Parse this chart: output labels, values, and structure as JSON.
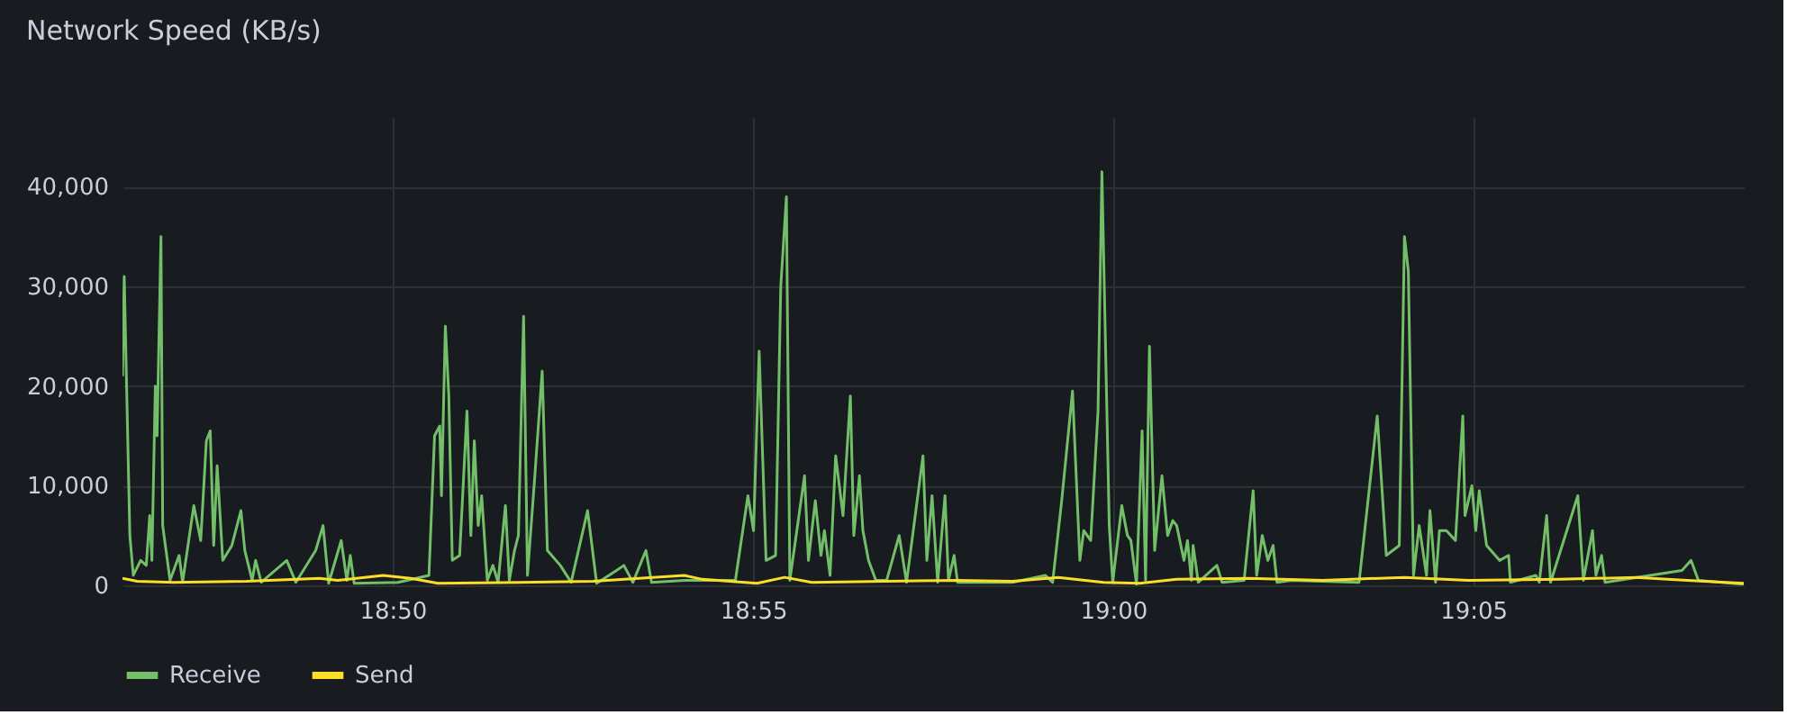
{
  "chart_data": {
    "type": "line",
    "title": "Network Speed (KB/s)",
    "xlim": [
      18.7708,
      19.1459
    ],
    "xticks": [
      {
        "value": 18.8333,
        "label": "18:50"
      },
      {
        "value": 18.9167,
        "label": "18:55"
      },
      {
        "value": 19.0,
        "label": "19:00"
      },
      {
        "value": 19.0833,
        "label": "19:05"
      }
    ],
    "ylim": [
      0,
      47000
    ],
    "yticks": [
      0,
      {
        "value": 10000,
        "label": "10,000"
      },
      {
        "value": 20000,
        "label": "20,000"
      },
      {
        "value": 30000,
        "label": "30,000"
      },
      {
        "value": 40000,
        "label": "40,000"
      }
    ],
    "grid": true,
    "legend": "bottom",
    "marker": "none",
    "line_style": "solid",
    "series": [
      {
        "name": "Receive",
        "color": "#73bf69",
        "x": [
          18.7708,
          18.7712,
          18.7725,
          18.7733,
          18.775,
          18.7763,
          18.7771,
          18.7776,
          18.7784,
          18.7788,
          18.7797,
          18.7801,
          18.7818,
          18.7839,
          18.7847,
          18.7873,
          18.7889,
          18.7902,
          18.7911,
          18.7919,
          18.7927,
          18.794,
          18.7961,
          18.7982,
          18.7991,
          18.8008,
          18.8016,
          18.8029,
          18.8088,
          18.8109,
          18.8155,
          18.8172,
          18.8185,
          18.8214,
          18.8227,
          18.8235,
          18.8244,
          18.8345,
          18.8417,
          18.843,
          18.8442,
          18.8446,
          18.8455,
          18.8463,
          18.8471,
          18.8488,
          18.8505,
          18.8514,
          18.8522,
          18.8531,
          18.8539,
          18.8552,
          18.8565,
          18.8577,
          18.8594,
          18.8603,
          18.8615,
          18.8624,
          18.8636,
          18.8645,
          18.8662,
          18.8679,
          18.8691,
          18.8721,
          18.8746,
          18.8784,
          18.8805,
          18.8851,
          18.8868,
          18.8889,
          18.8919,
          18.8932,
          18.9008,
          18.9126,
          18.9155,
          18.9168,
          18.9181,
          18.9197,
          18.9219,
          18.9231,
          18.9244,
          18.9252,
          18.9286,
          18.9295,
          18.9311,
          18.9324,
          18.9332,
          18.9345,
          18.9358,
          18.9375,
          18.9392,
          18.94,
          18.9413,
          18.9421,
          18.9434,
          18.9451,
          18.9476,
          18.9505,
          18.9522,
          18.956,
          18.9569,
          18.9581,
          18.9594,
          18.9611,
          18.9619,
          18.9632,
          18.964,
          18.9767,
          18.9843,
          18.986,
          18.9881,
          18.9906,
          18.9923,
          18.9932,
          18.9948,
          18.9965,
          18.9974,
          18.9991,
          18.9999,
          19.002,
          19.0033,
          19.0041,
          19.0054,
          19.0067,
          19.0075,
          19.0084,
          19.0096,
          19.0113,
          19.0126,
          19.0138,
          19.0147,
          19.0159,
          19.0164,
          19.0172,
          19.0181,
          19.0185,
          19.0197,
          19.024,
          19.0252,
          19.0303,
          19.0324,
          19.0332,
          19.0345,
          19.0358,
          19.037,
          19.0379,
          19.0413,
          19.0569,
          19.0611,
          19.0632,
          19.0662,
          19.0674,
          19.0683,
          19.0695,
          19.0708,
          19.0725,
          19.0733,
          19.0746,
          19.0755,
          19.0771,
          19.0792,
          19.0809,
          19.0814,
          19.083,
          19.0839,
          19.0847,
          19.0864,
          19.0894,
          19.0915,
          19.0919,
          19.0978,
          19.0986,
          19.1003,
          19.1012,
          19.1075,
          19.1088,
          19.1109,
          19.1117,
          19.113,
          19.1138,
          19.1316,
          19.1337,
          19.1354,
          19.1459
        ],
        "values": [
          21000,
          31000,
          5000,
          1000,
          2500,
          2000,
          7000,
          2500,
          20000,
          15000,
          35000,
          6000,
          500,
          3000,
          300,
          8000,
          4500,
          14500,
          15500,
          4000,
          12000,
          2500,
          4000,
          7500,
          3500,
          500,
          2500,
          300,
          2500,
          300,
          3500,
          6000,
          200,
          4500,
          500,
          3000,
          200,
          300,
          1000,
          15000,
          16000,
          9000,
          26000,
          19000,
          2500,
          3000,
          17500,
          5000,
          14500,
          6000,
          9000,
          500,
          2000,
          300,
          8000,
          500,
          3500,
          5000,
          27000,
          1000,
          11000,
          21500,
          3500,
          2000,
          300,
          7500,
          200,
          1500,
          2000,
          300,
          3500,
          300,
          500,
          500,
          9000,
          5500,
          23500,
          2500,
          3000,
          30000,
          39000,
          500,
          11000,
          2500,
          8500,
          3000,
          5500,
          1000,
          13000,
          7000,
          19000,
          5000,
          11000,
          5500,
          2500,
          500,
          500,
          5000,
          300,
          13000,
          2500,
          9000,
          300,
          9000,
          500,
          3000,
          300,
          300,
          1000,
          300,
          8500,
          19500,
          2500,
          5500,
          4500,
          17500,
          41500,
          6000,
          300,
          8000,
          5000,
          4500,
          100,
          15500,
          500,
          24000,
          3500,
          11000,
          5000,
          6500,
          6000,
          3500,
          2500,
          4500,
          500,
          4000,
          300,
          2000,
          300,
          500,
          9500,
          1000,
          5000,
          2500,
          4000,
          300,
          500,
          300,
          17000,
          3000,
          4000,
          35000,
          31500,
          1000,
          6000,
          1000,
          7500,
          300,
          5500,
          5500,
          4500,
          17000,
          7000,
          10000,
          5500,
          9500,
          4000,
          2500,
          3000,
          300,
          1000,
          300,
          7000,
          300,
          9000,
          500,
          5500,
          1000,
          3000,
          300,
          1500,
          2500,
          500,
          100
        ]
      },
      {
        "name": "Send",
        "color": "#fade2a",
        "x": [
          18.7708,
          18.7742,
          18.7826,
          18.7995,
          18.8164,
          18.8206,
          18.8311,
          18.8375,
          18.8438,
          18.8628,
          18.8797,
          18.9008,
          18.905,
          18.9176,
          18.924,
          18.9303,
          18.9472,
          18.964,
          18.9767,
          18.9873,
          18.9978,
          19.0062,
          19.0147,
          19.0316,
          19.0485,
          19.0674,
          19.0822,
          19.1033,
          19.121,
          19.1328,
          19.1459
        ],
        "values": [
          700,
          400,
          300,
          400,
          700,
          500,
          1000,
          700,
          200,
          300,
          400,
          1000,
          600,
          200,
          800,
          300,
          400,
          500,
          400,
          800,
          300,
          200,
          600,
          700,
          500,
          800,
          500,
          600,
          800,
          500,
          200
        ]
      }
    ]
  }
}
